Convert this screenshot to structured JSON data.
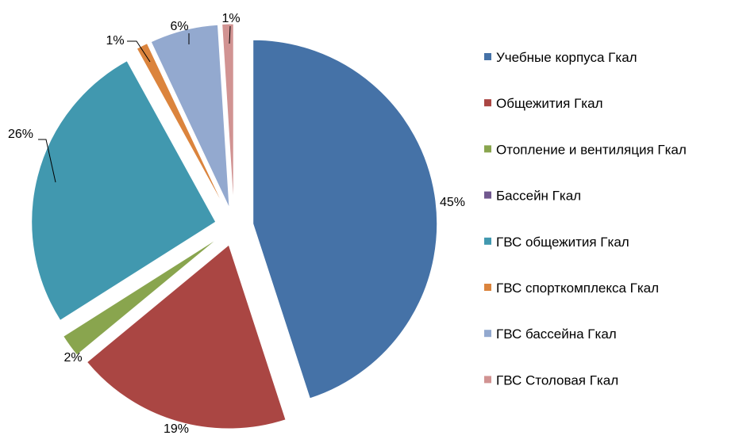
{
  "chart_data": {
    "type": "pie",
    "exploded": true,
    "legend_position": "right",
    "series": [
      {
        "name": "Учебные корпуса Гкал",
        "value": 45,
        "label": "45%",
        "color": "#4572A7"
      },
      {
        "name": "Общежития Гкал",
        "value": 19,
        "label": "19%",
        "color": "#AA4643"
      },
      {
        "name": "Отопление и вентиляция Гкал",
        "value": 2,
        "label": "2%",
        "color": "#89A54E"
      },
      {
        "name": "Бассейн Гкал",
        "value": 0,
        "label": "",
        "color": "#71588F"
      },
      {
        "name": "ГВС общежития Гкал",
        "value": 26,
        "label": "26%",
        "color": "#4198AF"
      },
      {
        "name": "ГВС спорткомплекса Гкал",
        "value": 1,
        "label": "1%",
        "color": "#DB843D"
      },
      {
        "name": "ГВС бассейна Гкал",
        "value": 6,
        "label": "6%",
        "color": "#93A9CF"
      },
      {
        "name": "ГВС Столовая Гкал",
        "value": 1,
        "label": "1%",
        "color": "#D19392"
      }
    ]
  }
}
